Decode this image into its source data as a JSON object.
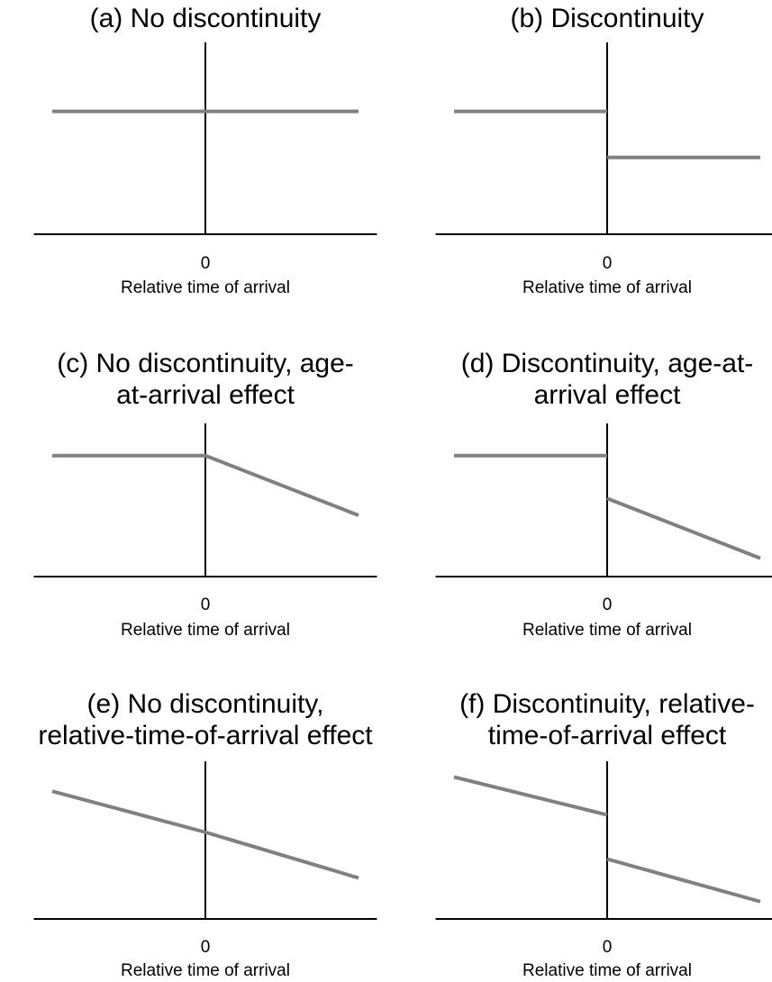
{
  "chart_data": [
    {
      "type": "line",
      "title": [
        "(a) No discontinuity"
      ],
      "x_label": "Relative time of arrival",
      "x": [
        -1,
        0,
        1
      ],
      "values": [
        6.4,
        6.4,
        6.4
      ],
      "color": "#808080",
      "xlim": [
        -1.12,
        1.12
      ],
      "xticks": [
        0
      ],
      "ylim": [
        0,
        10
      ]
    },
    {
      "type": "line",
      "title": [
        "(b) Discontinuity"
      ],
      "x_label": "Relative time of arrival",
      "x": [
        -1,
        0,
        0,
        0,
        1
      ],
      "values": [
        6.4,
        6.4,
        null,
        4.0,
        4.0
      ],
      "color": "#808080",
      "xlim": [
        -1.12,
        1.12
      ],
      "xticks": [
        0
      ],
      "ylim": [
        0,
        10
      ]
    },
    {
      "type": "line",
      "title": [
        "(c) No discontinuity, age-",
        "at-arrival effect"
      ],
      "x_label": "Relative time of arrival",
      "x": [
        -1,
        0,
        1
      ],
      "values": [
        7.9,
        7.9,
        4.0
      ],
      "color": "#808080",
      "xlim": [
        -1.12,
        1.12
      ],
      "xticks": [
        0
      ],
      "ylim": [
        0,
        10
      ]
    },
    {
      "type": "line",
      "title": [
        "(d) Discontinuity, age-at-",
        "arrival effect"
      ],
      "x_label": "Relative time of arrival",
      "x": [
        -1,
        0,
        0,
        0,
        1
      ],
      "values": [
        7.9,
        7.9,
        null,
        5.1,
        1.2
      ],
      "color": "#808080",
      "xlim": [
        -1.12,
        1.12
      ],
      "xticks": [
        0
      ],
      "ylim": [
        0,
        10
      ]
    },
    {
      "type": "line",
      "title": [
        "(e) No discontinuity,",
        "relative-time-of-arrival effect"
      ],
      "x_label": "Relative time of arrival",
      "x": [
        -1,
        0,
        1
      ],
      "values": [
        8.1,
        5.5,
        2.6
      ],
      "color": "#808080",
      "xlim": [
        -1.12,
        1.12
      ],
      "xticks": [
        0
      ],
      "ylim": [
        0,
        10
      ]
    },
    {
      "type": "line",
      "title": [
        "(f) Discontinuity, relative-",
        "time-of-arrival effect"
      ],
      "x_label": "Relative time of arrival",
      "x": [
        -1,
        0,
        0,
        0,
        1
      ],
      "values": [
        9.0,
        6.6,
        null,
        3.8,
        1.1
      ],
      "color": "#808080",
      "xlim": [
        -1.12,
        1.12
      ],
      "xticks": [
        0
      ],
      "ylim": [
        0,
        10
      ]
    }
  ]
}
